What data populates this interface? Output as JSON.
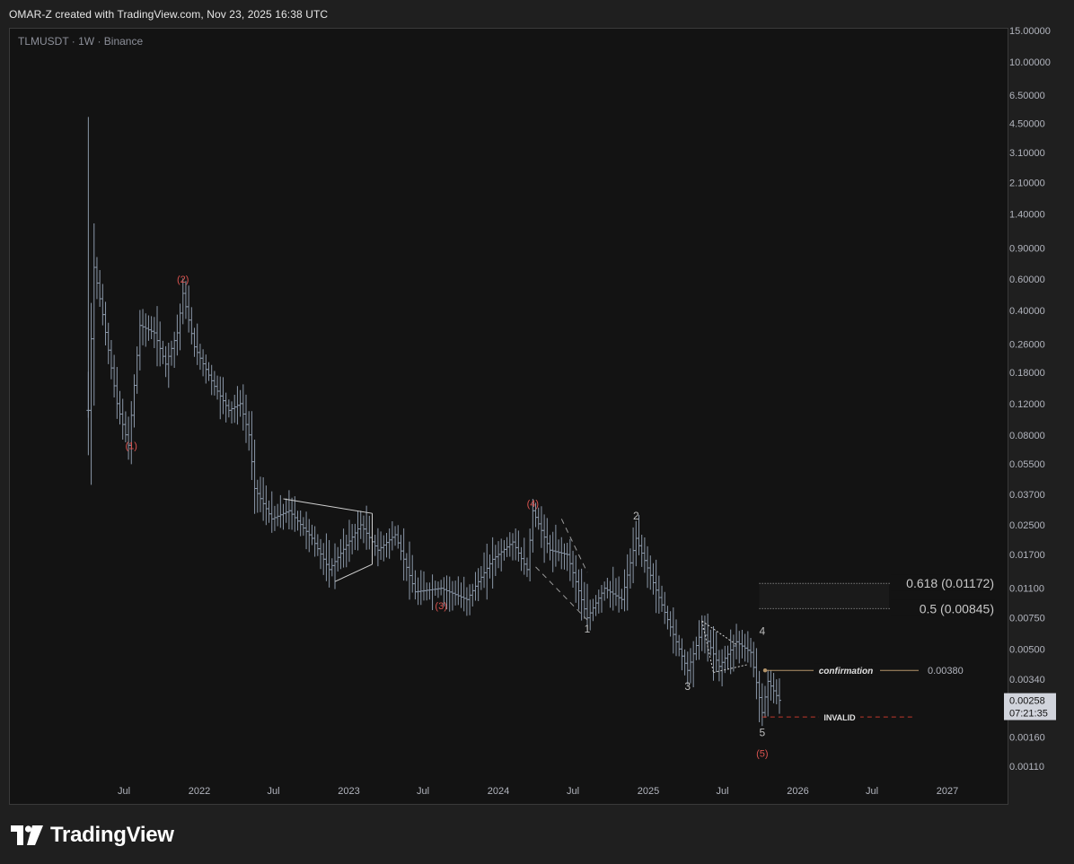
{
  "caption": "OMAR-Z created with TradingView.com, Nov 23, 2025 16:38 UTC",
  "brand": "TradingView",
  "colors": {
    "background": "#131313",
    "candles": "#8a97a8",
    "wave_red": "#d9534f",
    "wave_grey": "#bdbdbd",
    "confirmation": "#b5956a",
    "invalid": "#c0392b",
    "price_box": "#d1d4dc"
  },
  "chart_data": {
    "type": "line",
    "title": "TLMUSDT · 1W · Binance",
    "scale": "log",
    "ylim": [
      0.00095,
      16
    ],
    "xlim": [
      "2021-03-01",
      "2027-06-01"
    ],
    "y_ticks": [
      "15.00000",
      "10.00000",
      "6.50000",
      "4.50000",
      "3.10000",
      "2.10000",
      "1.40000",
      "0.90000",
      "0.60000",
      "0.40000",
      "0.26000",
      "0.18000",
      "0.12000",
      "0.08000",
      "0.05500",
      "0.03700",
      "0.02500",
      "0.01700",
      "0.01100",
      "0.00750",
      "0.00500",
      "0.00340",
      "0.00160",
      "0.00110"
    ],
    "x_ticks": [
      "Jul",
      "2022",
      "Jul",
      "2023",
      "Jul",
      "2024",
      "Jul",
      "2025",
      "Jul",
      "2026",
      "Jul",
      "2027"
    ],
    "current_price": "0.00258",
    "countdown": "07:21:35",
    "price_series": [
      {
        "date": "2021-04-05",
        "value": 0.11
      },
      {
        "date": "2021-04-19",
        "value": 0.7
      },
      {
        "date": "2021-05-10",
        "value": 0.38
      },
      {
        "date": "2021-06-14",
        "value": 0.12
      },
      {
        "date": "2021-07-12",
        "value": 0.07
      },
      {
        "date": "2021-08-09",
        "value": 0.33
      },
      {
        "date": "2021-09-13",
        "value": 0.3
      },
      {
        "date": "2021-10-11",
        "value": 0.2
      },
      {
        "date": "2021-11-08",
        "value": 0.3
      },
      {
        "date": "2021-11-22",
        "value": 0.5
      },
      {
        "date": "2021-12-20",
        "value": 0.25
      },
      {
        "date": "2022-02-07",
        "value": 0.15
      },
      {
        "date": "2022-03-14",
        "value": 0.11
      },
      {
        "date": "2022-04-11",
        "value": 0.12
      },
      {
        "date": "2022-05-02",
        "value": 0.08
      },
      {
        "date": "2022-05-16",
        "value": 0.04
      },
      {
        "date": "2022-06-27",
        "value": 0.027
      },
      {
        "date": "2022-08-08",
        "value": 0.03
      },
      {
        "date": "2022-10-03",
        "value": 0.021
      },
      {
        "date": "2022-11-14",
        "value": 0.014
      },
      {
        "date": "2023-01-30",
        "value": 0.025
      },
      {
        "date": "2023-03-13",
        "value": 0.018
      },
      {
        "date": "2023-04-24",
        "value": 0.022
      },
      {
        "date": "2023-06-12",
        "value": 0.0105
      },
      {
        "date": "2023-08-14",
        "value": 0.011
      },
      {
        "date": "2023-10-16",
        "value": 0.0095
      },
      {
        "date": "2023-12-18",
        "value": 0.016
      },
      {
        "date": "2024-02-05",
        "value": 0.02
      },
      {
        "date": "2024-03-11",
        "value": 0.014
      },
      {
        "date": "2024-03-25",
        "value": 0.03
      },
      {
        "date": "2024-05-06",
        "value": 0.018
      },
      {
        "date": "2024-06-17",
        "value": 0.017
      },
      {
        "date": "2024-08-05",
        "value": 0.0075
      },
      {
        "date": "2024-09-16",
        "value": 0.011
      },
      {
        "date": "2024-10-28",
        "value": 0.0095
      },
      {
        "date": "2024-12-02",
        "value": 0.021
      },
      {
        "date": "2025-01-06",
        "value": 0.013
      },
      {
        "date": "2025-03-10",
        "value": 0.0055
      },
      {
        "date": "2025-04-07",
        "value": 0.0038
      },
      {
        "date": "2025-05-12",
        "value": 0.0065
      },
      {
        "date": "2025-06-23",
        "value": 0.004
      },
      {
        "date": "2025-08-04",
        "value": 0.0055
      },
      {
        "date": "2025-09-08",
        "value": 0.0048
      },
      {
        "date": "2025-10-06",
        "value": 0.0022
      },
      {
        "date": "2025-10-20",
        "value": 0.0033
      },
      {
        "date": "2025-11-17",
        "value": 0.00258
      }
    ],
    "wave_labels_major": [
      {
        "label": "(1)",
        "date": "2021-07-19",
        "price": 0.07,
        "pos": "below"
      },
      {
        "label": "(2)",
        "date": "2021-11-22",
        "price": 0.6,
        "pos": "above"
      },
      {
        "label": "(3)",
        "date": "2023-08-14",
        "price": 0.0088,
        "pos": "below"
      },
      {
        "label": "(4)",
        "date": "2024-03-25",
        "price": 0.033,
        "pos": "above"
      },
      {
        "label": "(5)",
        "date": "2025-10-06",
        "price": 0.0013,
        "pos": "below"
      }
    ],
    "wave_labels_minor": [
      {
        "label": "1",
        "date": "2024-08-05",
        "price": 0.0065,
        "pos": "below"
      },
      {
        "label": "2",
        "date": "2024-12-02",
        "price": 0.028,
        "pos": "above"
      },
      {
        "label": "3",
        "date": "2025-04-07",
        "price": 0.0031,
        "pos": "below"
      },
      {
        "label": "4",
        "date": "2025-10-06",
        "price": 0.0063,
        "pos": "above"
      },
      {
        "label": "5",
        "date": "2025-10-06",
        "price": 0.0017,
        "pos": "below"
      }
    ],
    "fib_levels": [
      {
        "label": "0.618 (0.01172)",
        "value": 0.01172
      },
      {
        "label": "0.5 (0.00845)",
        "value": 0.00845
      }
    ],
    "confirmation": {
      "label": "confirmation",
      "value": 0.0038,
      "value_label": "0.00380"
    },
    "invalid": {
      "label": "INVALID",
      "value": 0.00208
    }
  }
}
